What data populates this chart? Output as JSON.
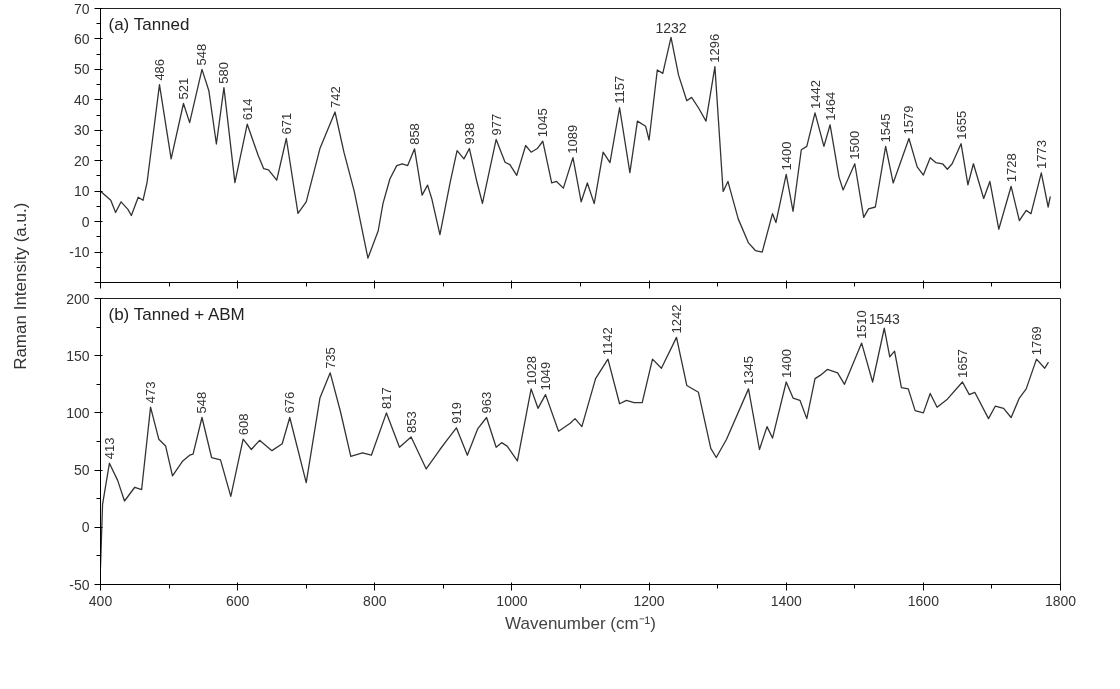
{
  "chart_data": [
    {
      "type": "line",
      "title": "(a) Tanned",
      "ylabel": "Raman Intensity (a.u.)",
      "color": "#333333",
      "tick_labels": "y",
      "xlim": [
        400,
        1800
      ],
      "xticks": [
        400,
        600,
        800,
        1000,
        1200,
        1400,
        1600,
        1800
      ],
      "ylim": [
        -20,
        70
      ],
      "yticks": [
        {
          "value": -20,
          "label": null
        },
        -10,
        0,
        10,
        20,
        30,
        40,
        50,
        60,
        70
      ],
      "x": [
        400,
        415,
        422,
        430,
        440,
        445,
        455,
        462,
        468,
        486,
        503,
        521,
        530,
        548,
        558,
        569,
        580,
        596,
        614,
        630,
        638,
        645,
        657,
        671,
        688,
        700,
        720,
        742,
        755,
        770,
        790,
        805,
        812,
        822,
        832,
        840,
        848,
        858,
        869,
        877,
        883,
        895,
        910,
        920,
        930,
        938,
        949,
        957,
        977,
        990,
        997,
        1007,
        1020,
        1028,
        1037,
        1045,
        1058,
        1065,
        1075,
        1089,
        1101,
        1110,
        1120,
        1133,
        1143,
        1157,
        1172,
        1183,
        1195,
        1200,
        1212,
        1220,
        1232,
        1243,
        1255,
        1262,
        1272,
        1283,
        1296,
        1308,
        1315,
        1330,
        1345,
        1355,
        1365,
        1380,
        1385,
        1400,
        1410,
        1422,
        1430,
        1442,
        1455,
        1464,
        1477,
        1483,
        1500,
        1513,
        1520,
        1530,
        1545,
        1556,
        1566,
        1579,
        1591,
        1600,
        1610,
        1618,
        1628,
        1635,
        1642,
        1655,
        1665,
        1673,
        1688,
        1697,
        1710,
        1728,
        1740,
        1750,
        1757,
        1772,
        1782,
        1785
      ],
      "values": [
        10,
        7,
        3,
        6.5,
        4,
        2,
        8,
        7,
        13,
        45,
        20.6,
        38.8,
        32.5,
        50,
        43,
        25.5,
        44,
        12.8,
        32,
        21.7,
        17.4,
        17,
        13.6,
        27.3,
        2.7,
        6.5,
        24,
        36,
        22.8,
        10,
        -12,
        -3,
        6,
        14,
        18.4,
        19,
        18.4,
        23.9,
        8.7,
        12,
        7.6,
        -4.3,
        13,
        23.3,
        20.6,
        24,
        13,
        6,
        27,
        19.5,
        18.7,
        15.2,
        25,
        22.8,
        24,
        26.4,
        12.7,
        13.2,
        11,
        21,
        6.5,
        12.7,
        5.9,
        22.8,
        19.4,
        37.4,
        16.1,
        33,
        31.3,
        26.8,
        49.8,
        48.7,
        60.5,
        48.1,
        39.7,
        40.8,
        37.4,
        33,
        50.9,
        9.9,
        13.2,
        0.9,
        -7,
        -9.5,
        -10,
        2.6,
        -0.3,
        15.5,
        3.4,
        23.6,
        24.7,
        35.7,
        24.7,
        31.8,
        14.6,
        10.4,
        19,
        1.4,
        4.2,
        4.8,
        24.7,
        12.7,
        19,
        27.3,
        18,
        15.3,
        21,
        19.4,
        19,
        17.2,
        19,
        25.6,
        12.1,
        19,
        7.6,
        13.2,
        -2.5,
        11.6,
        0.3,
        3.7,
        2.6,
        16,
        4.8,
        8.1
      ],
      "annotations": [
        {
          "text": "486",
          "x": 486,
          "y": 45
        },
        {
          "text": "521",
          "x": 521,
          "y": 38.8
        },
        {
          "text": "548",
          "x": 548,
          "y": 50
        },
        {
          "text": "580",
          "x": 580,
          "y": 44
        },
        {
          "text": "614",
          "x": 614,
          "y": 32
        },
        {
          "text": "671",
          "x": 671,
          "y": 27.3
        },
        {
          "text": "742",
          "x": 742,
          "y": 36
        },
        {
          "text": "858",
          "x": 858,
          "y": 23.9
        },
        {
          "text": "938",
          "x": 938,
          "y": 24
        },
        {
          "text": "977",
          "x": 977,
          "y": 27
        },
        {
          "text": "1045",
          "x": 1045,
          "y": 26.4
        },
        {
          "text": "1089",
          "x": 1089,
          "y": 21
        },
        {
          "text": "1157",
          "x": 1157,
          "y": 37.4
        },
        {
          "text": "1232",
          "x": 1232,
          "y": 60.5
        },
        {
          "text": "1296",
          "x": 1296,
          "y": 50.9
        },
        {
          "text": "1400",
          "x": 1400,
          "y": 15.5
        },
        {
          "text": "1442",
          "x": 1442,
          "y": 35.7
        },
        {
          "text": "1464",
          "x": 1464,
          "y": 31.8
        },
        {
          "text": "1500",
          "x": 1500,
          "y": 19
        },
        {
          "text": "1545",
          "x": 1545,
          "y": 24.7
        },
        {
          "text": "1579",
          "x": 1579,
          "y": 27.3
        },
        {
          "text": "1655",
          "x": 1655,
          "y": 25.6
        },
        {
          "text": "1728",
          "x": 1728,
          "y": 11.6
        },
        {
          "text": "1773",
          "x": 1772,
          "y": 16
        }
      ]
    },
    {
      "type": "line",
      "title": "(b) Tanned + ABM",
      "xlabel": "Wavenumber (cm⁻¹)",
      "color": "#333333",
      "xlim": [
        400,
        1800
      ],
      "xticks": [
        400,
        600,
        800,
        1000,
        1200,
        1400,
        1600,
        1800
      ],
      "ylim": [
        -50,
        200
      ],
      "yticks": [
        -50,
        0,
        50,
        100,
        150,
        200
      ],
      "x": [
        400,
        403,
        413,
        425,
        435,
        450,
        460,
        473,
        485,
        495,
        505,
        520,
        530,
        535,
        548,
        562,
        575,
        590,
        608,
        620,
        632,
        650,
        665,
        676,
        700,
        720,
        735,
        750,
        765,
        782,
        795,
        817,
        836,
        853,
        875,
        895,
        905,
        919,
        935,
        950,
        963,
        977,
        985,
        993,
        1008,
        1028,
        1038,
        1049,
        1068,
        1085,
        1092,
        1102,
        1122,
        1140,
        1157,
        1167,
        1178,
        1190,
        1205,
        1218,
        1240,
        1255,
        1272,
        1290,
        1298,
        1313,
        1345,
        1361,
        1372,
        1380,
        1400,
        1410,
        1420,
        1430,
        1442,
        1450,
        1460,
        1475,
        1485,
        1510,
        1526,
        1543,
        1551,
        1558,
        1568,
        1578,
        1588,
        1600,
        1610,
        1620,
        1635,
        1657,
        1667,
        1675,
        1695,
        1705,
        1717,
        1728,
        1740,
        1750,
        1765,
        1777,
        1782
      ],
      "values": [
        -35,
        20,
        56,
        41,
        23,
        35,
        33,
        105,
        77,
        71,
        45,
        58,
        63,
        64,
        96,
        61,
        59,
        27,
        77,
        68,
        76,
        67,
        73,
        96,
        39,
        113,
        135,
        101,
        62,
        65,
        63,
        100,
        70,
        79,
        51,
        68,
        76,
        87,
        63,
        86,
        96,
        70,
        74,
        71,
        58,
        121,
        104,
        116,
        84,
        91,
        95,
        88,
        130,
        147,
        108,
        111,
        109,
        109,
        147,
        139,
        166,
        124,
        118,
        69,
        61,
        77,
        121,
        68,
        88,
        78,
        127,
        113,
        111,
        95,
        130,
        133,
        138,
        135,
        125,
        161,
        127,
        174,
        149,
        154,
        122,
        121,
        102,
        100,
        117,
        105,
        112,
        127,
        116,
        118,
        95,
        106,
        104,
        96,
        113,
        121,
        147,
        139,
        144
      ],
      "annotations": [
        {
          "text": "413",
          "x": 413,
          "y": 56
        },
        {
          "text": "473",
          "x": 473,
          "y": 105
        },
        {
          "text": "548",
          "x": 548,
          "y": 96
        },
        {
          "text": "608",
          "x": 608,
          "y": 77
        },
        {
          "text": "676",
          "x": 676,
          "y": 96
        },
        {
          "text": "735",
          "x": 735,
          "y": 135
        },
        {
          "text": "817",
          "x": 817,
          "y": 100
        },
        {
          "text": "853",
          "x": 853,
          "y": 79
        },
        {
          "text": "919",
          "x": 919,
          "y": 87
        },
        {
          "text": "963",
          "x": 963,
          "y": 96
        },
        {
          "text": "1028",
          "x": 1028,
          "y": 121
        },
        {
          "text": "1049",
          "x": 1049,
          "y": 116
        },
        {
          "text": "1142",
          "x": 1140,
          "y": 147
        },
        {
          "text": "1242",
          "x": 1240,
          "y": 166
        },
        {
          "text": "1345",
          "x": 1345,
          "y": 121
        },
        {
          "text": "1400",
          "x": 1400,
          "y": 127
        },
        {
          "text": "1510",
          "x": 1510,
          "y": 161
        },
        {
          "text": "1543",
          "x": 1543,
          "y": 174
        },
        {
          "text": "1657",
          "x": 1657,
          "y": 127
        },
        {
          "text": "1769",
          "x": 1765,
          "y": 147
        }
      ]
    }
  ]
}
